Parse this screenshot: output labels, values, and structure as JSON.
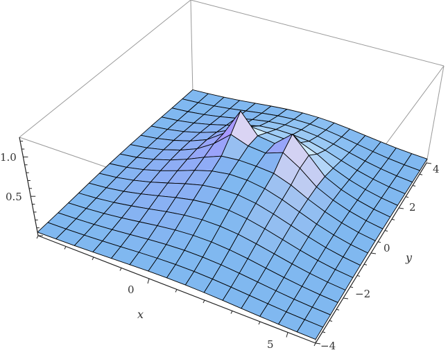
{
  "chart_data": {
    "type": "surface",
    "title": "",
    "xlabel": "x",
    "ylabel": "y",
    "zlabel": "",
    "x_range": [
      -4,
      6
    ],
    "y_range": [
      -4,
      4
    ],
    "z_range": [
      0,
      1.25
    ],
    "x_ticks": [
      "0",
      "5"
    ],
    "y_ticks": [
      "-4",
      "-2",
      "0",
      "2",
      "4"
    ],
    "z_ticks": [
      "0.5",
      "1.0"
    ],
    "x_tick_values": [
      0,
      5
    ],
    "y_tick_values": [
      -4,
      -2,
      0,
      2,
      4
    ],
    "z_tick_values": [
      0.5,
      1.0
    ],
    "mesh_lines": 15,
    "broad_hump": {
      "center": [
        1,
        0.5
      ],
      "height": 0.45
    },
    "peaks": [
      {
        "x": 0,
        "y": 1.2,
        "z": 1.0
      },
      {
        "x": 2.2,
        "y": 1.2,
        "z": 1.0
      }
    ],
    "colors": {
      "flat": "#80b8f0",
      "lit": "#ffe0f5",
      "violet": "#a898ff",
      "mesh": "#000000",
      "box": "#999999"
    }
  }
}
